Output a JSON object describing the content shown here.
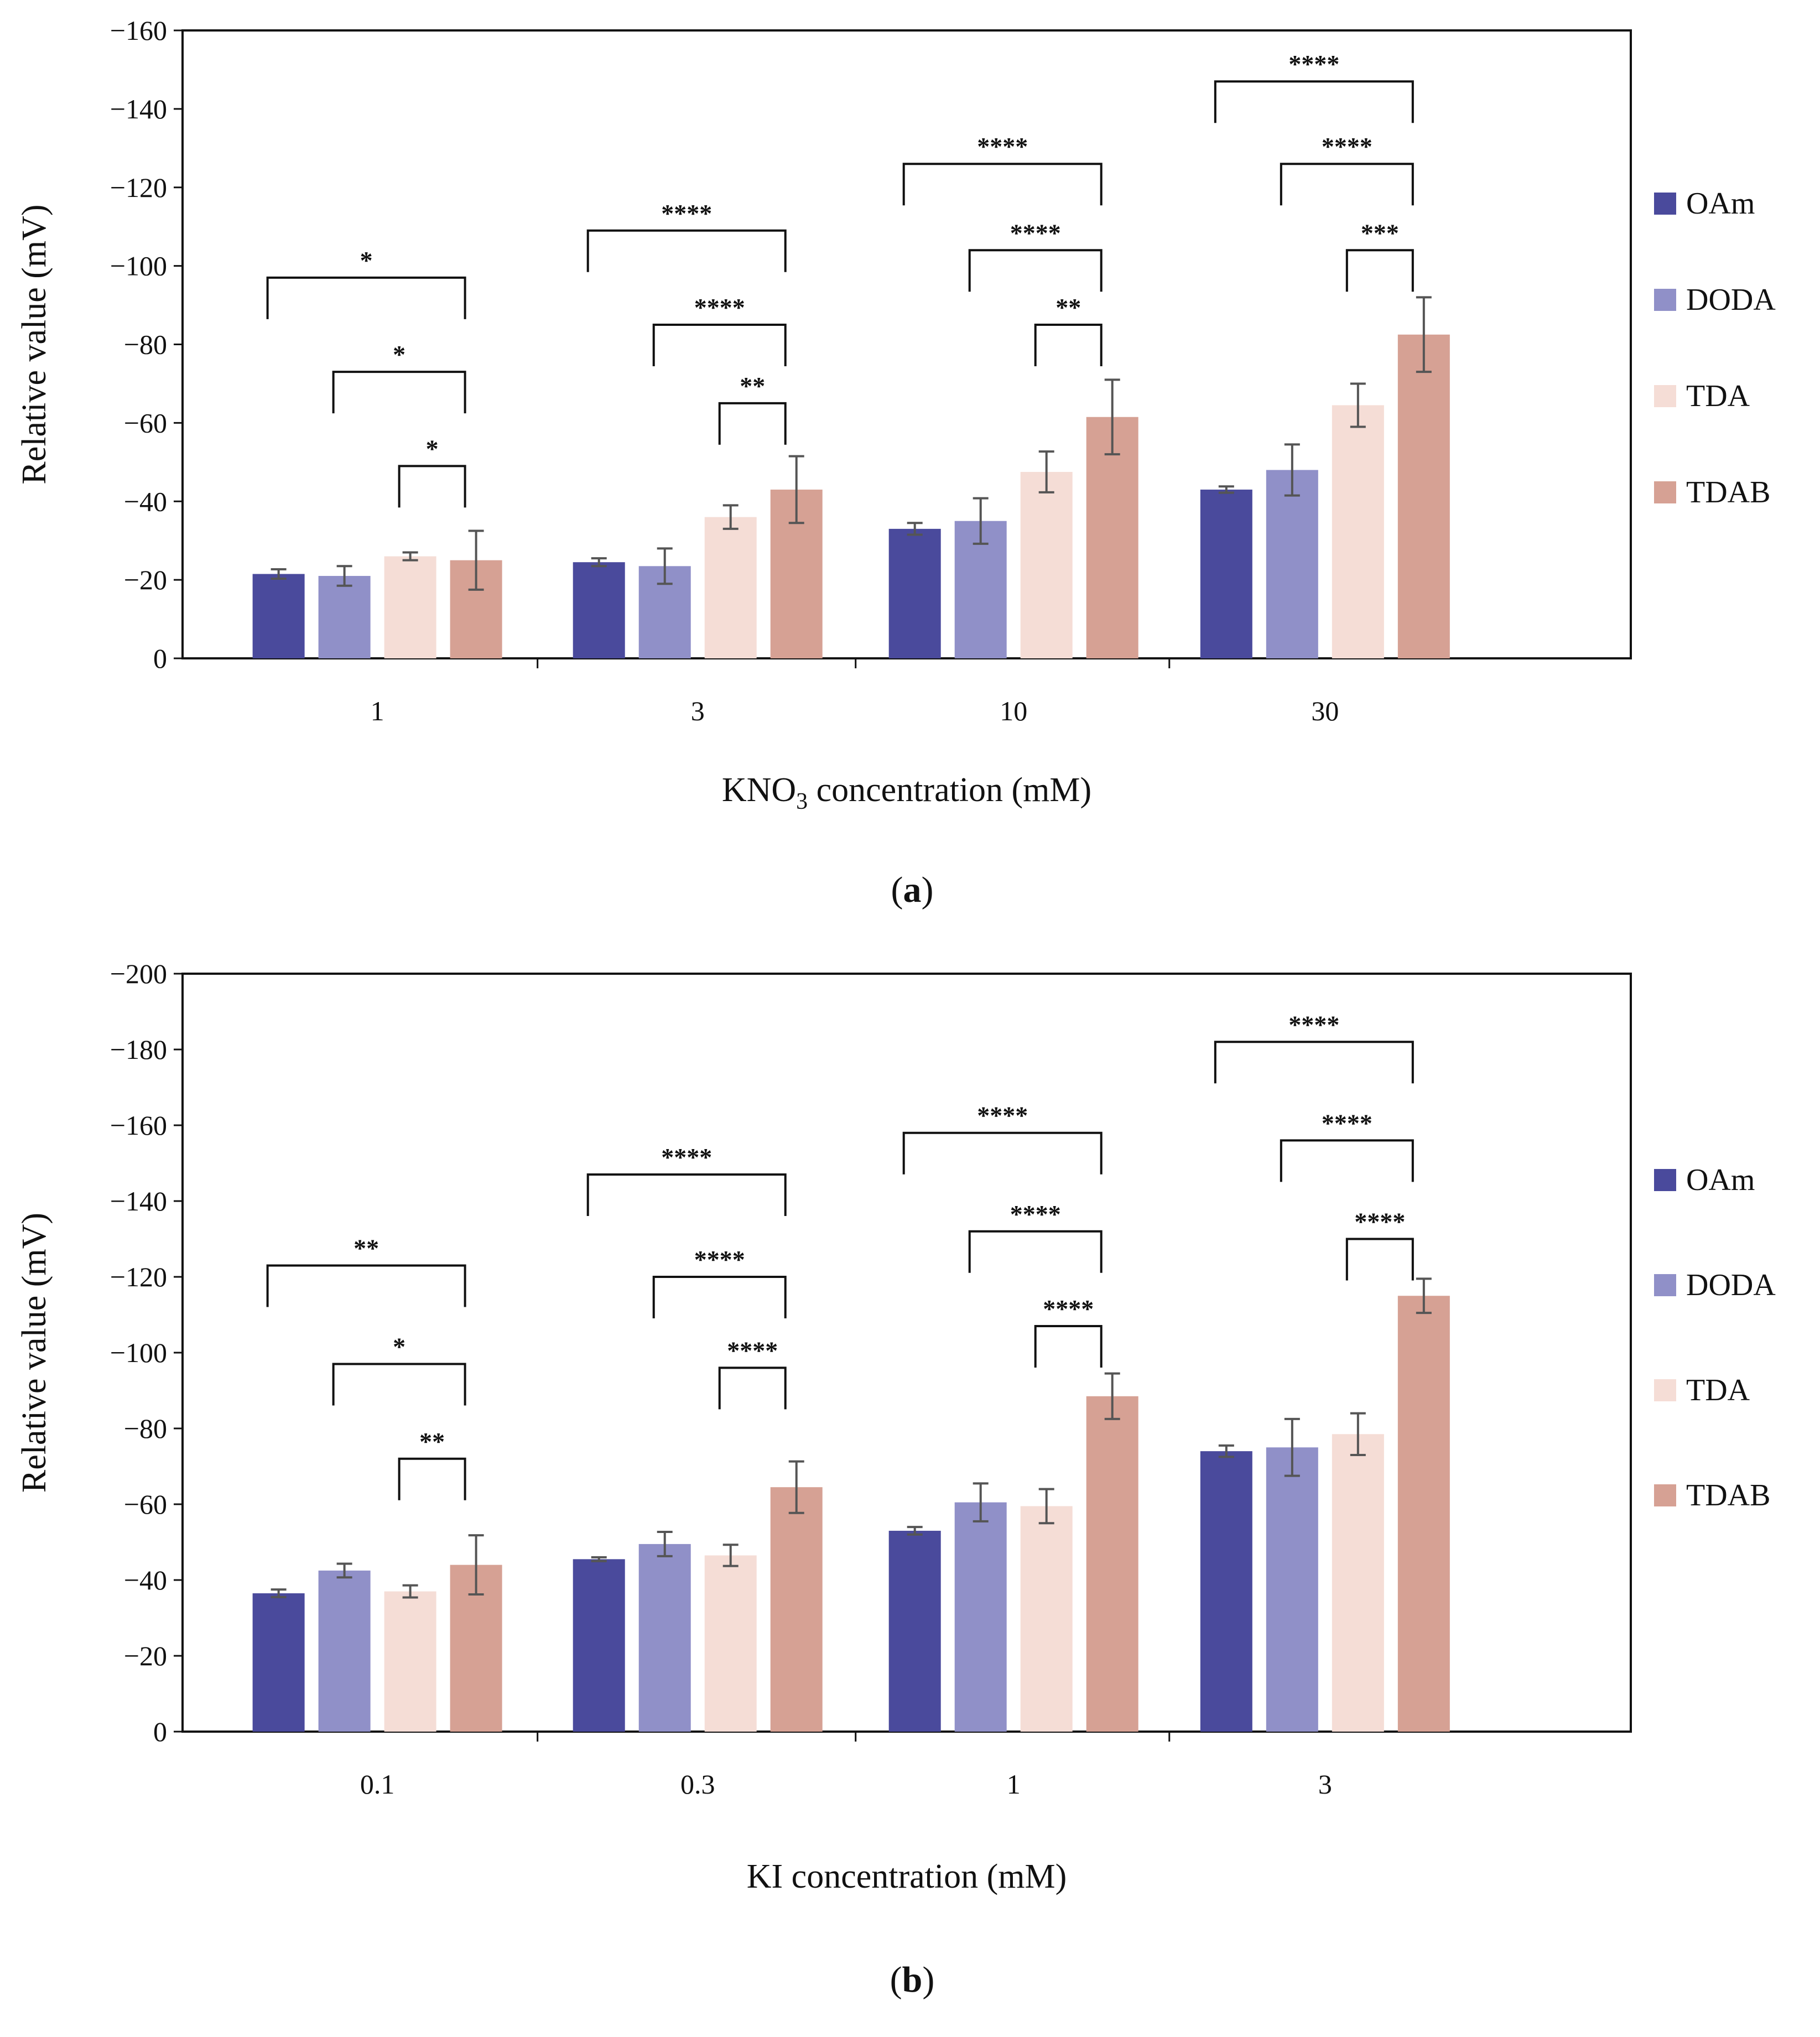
{
  "chart_data": [
    {
      "type": "bar",
      "panel_label": "a",
      "title": "",
      "xlabel": {
        "main": "KNO",
        "sub": "3",
        "rest": " concentration (mM)"
      },
      "ylabel": "Relative value (mV)",
      "ylim": [
        0,
        -160
      ],
      "yticks": [
        0,
        -20,
        -40,
        -60,
        -80,
        -100,
        -120,
        -140,
        -160
      ],
      "ytick_labels": [
        "0",
        "−20",
        "−40",
        "−60",
        "−80",
        "−100",
        "−120",
        "−140",
        "−160"
      ],
      "grid": false,
      "legend_position": "right",
      "categories": [
        "1",
        "3",
        "10",
        "30"
      ],
      "series": [
        {
          "name": "OAm",
          "color": "#4a4a9c",
          "values": [
            -21.5,
            -24.5,
            -33,
            -43
          ],
          "errors": [
            1.2,
            1.0,
            1.5,
            0.8
          ]
        },
        {
          "name": "DODA",
          "color": "#9090c8",
          "values": [
            -21,
            -23.5,
            -35,
            -48
          ],
          "errors": [
            2.5,
            4.5,
            5.8,
            6.5
          ]
        },
        {
          "name": "TDA",
          "color": "#f5ddd6",
          "values": [
            -26,
            -36,
            -47.5,
            -64.5
          ],
          "errors": [
            1.0,
            3.0,
            5.2,
            5.5
          ]
        },
        {
          "name": "TDAB",
          "color": "#d6a194",
          "values": [
            -25,
            -43,
            -61.5,
            -82.5
          ],
          "errors": [
            7.5,
            8.5,
            9.5,
            9.5
          ]
        }
      ],
      "significance": [
        {
          "category": 0,
          "from": 0,
          "to": 3,
          "level": -97,
          "label": "*"
        },
        {
          "category": 0,
          "from": 1,
          "to": 3,
          "level": -73,
          "label": "*"
        },
        {
          "category": 0,
          "from": 2,
          "to": 3,
          "level": -49,
          "label": "*"
        },
        {
          "category": 1,
          "from": 0,
          "to": 3,
          "level": -109,
          "label": "****"
        },
        {
          "category": 1,
          "from": 1,
          "to": 3,
          "level": -85,
          "label": "****"
        },
        {
          "category": 1,
          "from": 2,
          "to": 3,
          "level": -65,
          "label": "**"
        },
        {
          "category": 2,
          "from": 0,
          "to": 3,
          "level": -126,
          "label": "****"
        },
        {
          "category": 2,
          "from": 1,
          "to": 3,
          "level": -104,
          "label": "****"
        },
        {
          "category": 2,
          "from": 2,
          "to": 3,
          "level": -85,
          "label": "**"
        },
        {
          "category": 3,
          "from": 0,
          "to": 3,
          "level": -147,
          "label": "****"
        },
        {
          "category": 3,
          "from": 1,
          "to": 3,
          "level": -126,
          "label": "****"
        },
        {
          "category": 3,
          "from": 2,
          "to": 3,
          "level": -104,
          "label": "***"
        }
      ]
    },
    {
      "type": "bar",
      "panel_label": "b",
      "title": "",
      "xlabel": {
        "main": "KI concentration (mM)",
        "sub": "",
        "rest": ""
      },
      "ylabel": "Relative value (mV)",
      "ylim": [
        0,
        -200
      ],
      "yticks": [
        0,
        -20,
        -40,
        -60,
        -80,
        -100,
        -120,
        -140,
        -160,
        -180,
        -200
      ],
      "ytick_labels": [
        "0",
        "−20",
        "−40",
        "−60",
        "−80",
        "−100",
        "−120",
        "−140",
        "−160",
        "−180",
        "−200"
      ],
      "grid": false,
      "legend_position": "right",
      "categories": [
        "0.1",
        "0.3",
        "1",
        "3"
      ],
      "series": [
        {
          "name": "OAm",
          "color": "#4a4a9c",
          "values": [
            -36.5,
            -45.5,
            -53,
            -74
          ],
          "errors": [
            1.0,
            0.5,
            1.0,
            1.5
          ]
        },
        {
          "name": "DODA",
          "color": "#9090c8",
          "values": [
            -42.5,
            -49.5,
            -60.5,
            -75
          ],
          "errors": [
            1.8,
            3.2,
            5.0,
            7.5
          ]
        },
        {
          "name": "TDA",
          "color": "#f5ddd6",
          "values": [
            -37,
            -46.5,
            -59.5,
            -78.5
          ],
          "errors": [
            1.6,
            2.8,
            4.5,
            5.5
          ]
        },
        {
          "name": "TDAB",
          "color": "#d6a194",
          "values": [
            -44,
            -64.5,
            -88.5,
            -115
          ],
          "errors": [
            7.8,
            6.8,
            6.0,
            4.5
          ]
        }
      ],
      "significance": [
        {
          "category": 0,
          "from": 0,
          "to": 3,
          "level": -123,
          "label": "**"
        },
        {
          "category": 0,
          "from": 1,
          "to": 3,
          "level": -97,
          "label": "*"
        },
        {
          "category": 0,
          "from": 2,
          "to": 3,
          "level": -72,
          "label": "**"
        },
        {
          "category": 1,
          "from": 0,
          "to": 3,
          "level": -147,
          "label": "****"
        },
        {
          "category": 1,
          "from": 1,
          "to": 3,
          "level": -120,
          "label": "****"
        },
        {
          "category": 1,
          "from": 2,
          "to": 3,
          "level": -96,
          "label": "****"
        },
        {
          "category": 2,
          "from": 0,
          "to": 3,
          "level": -158,
          "label": "****"
        },
        {
          "category": 2,
          "from": 1,
          "to": 3,
          "level": -132,
          "label": "****"
        },
        {
          "category": 2,
          "from": 2,
          "to": 3,
          "level": -107,
          "label": "****"
        },
        {
          "category": 3,
          "from": 0,
          "to": 3,
          "level": -182,
          "label": "****"
        },
        {
          "category": 3,
          "from": 1,
          "to": 3,
          "level": -156,
          "label": "****"
        },
        {
          "category": 3,
          "from": 2,
          "to": 3,
          "level": -130,
          "label": "****"
        }
      ]
    }
  ]
}
